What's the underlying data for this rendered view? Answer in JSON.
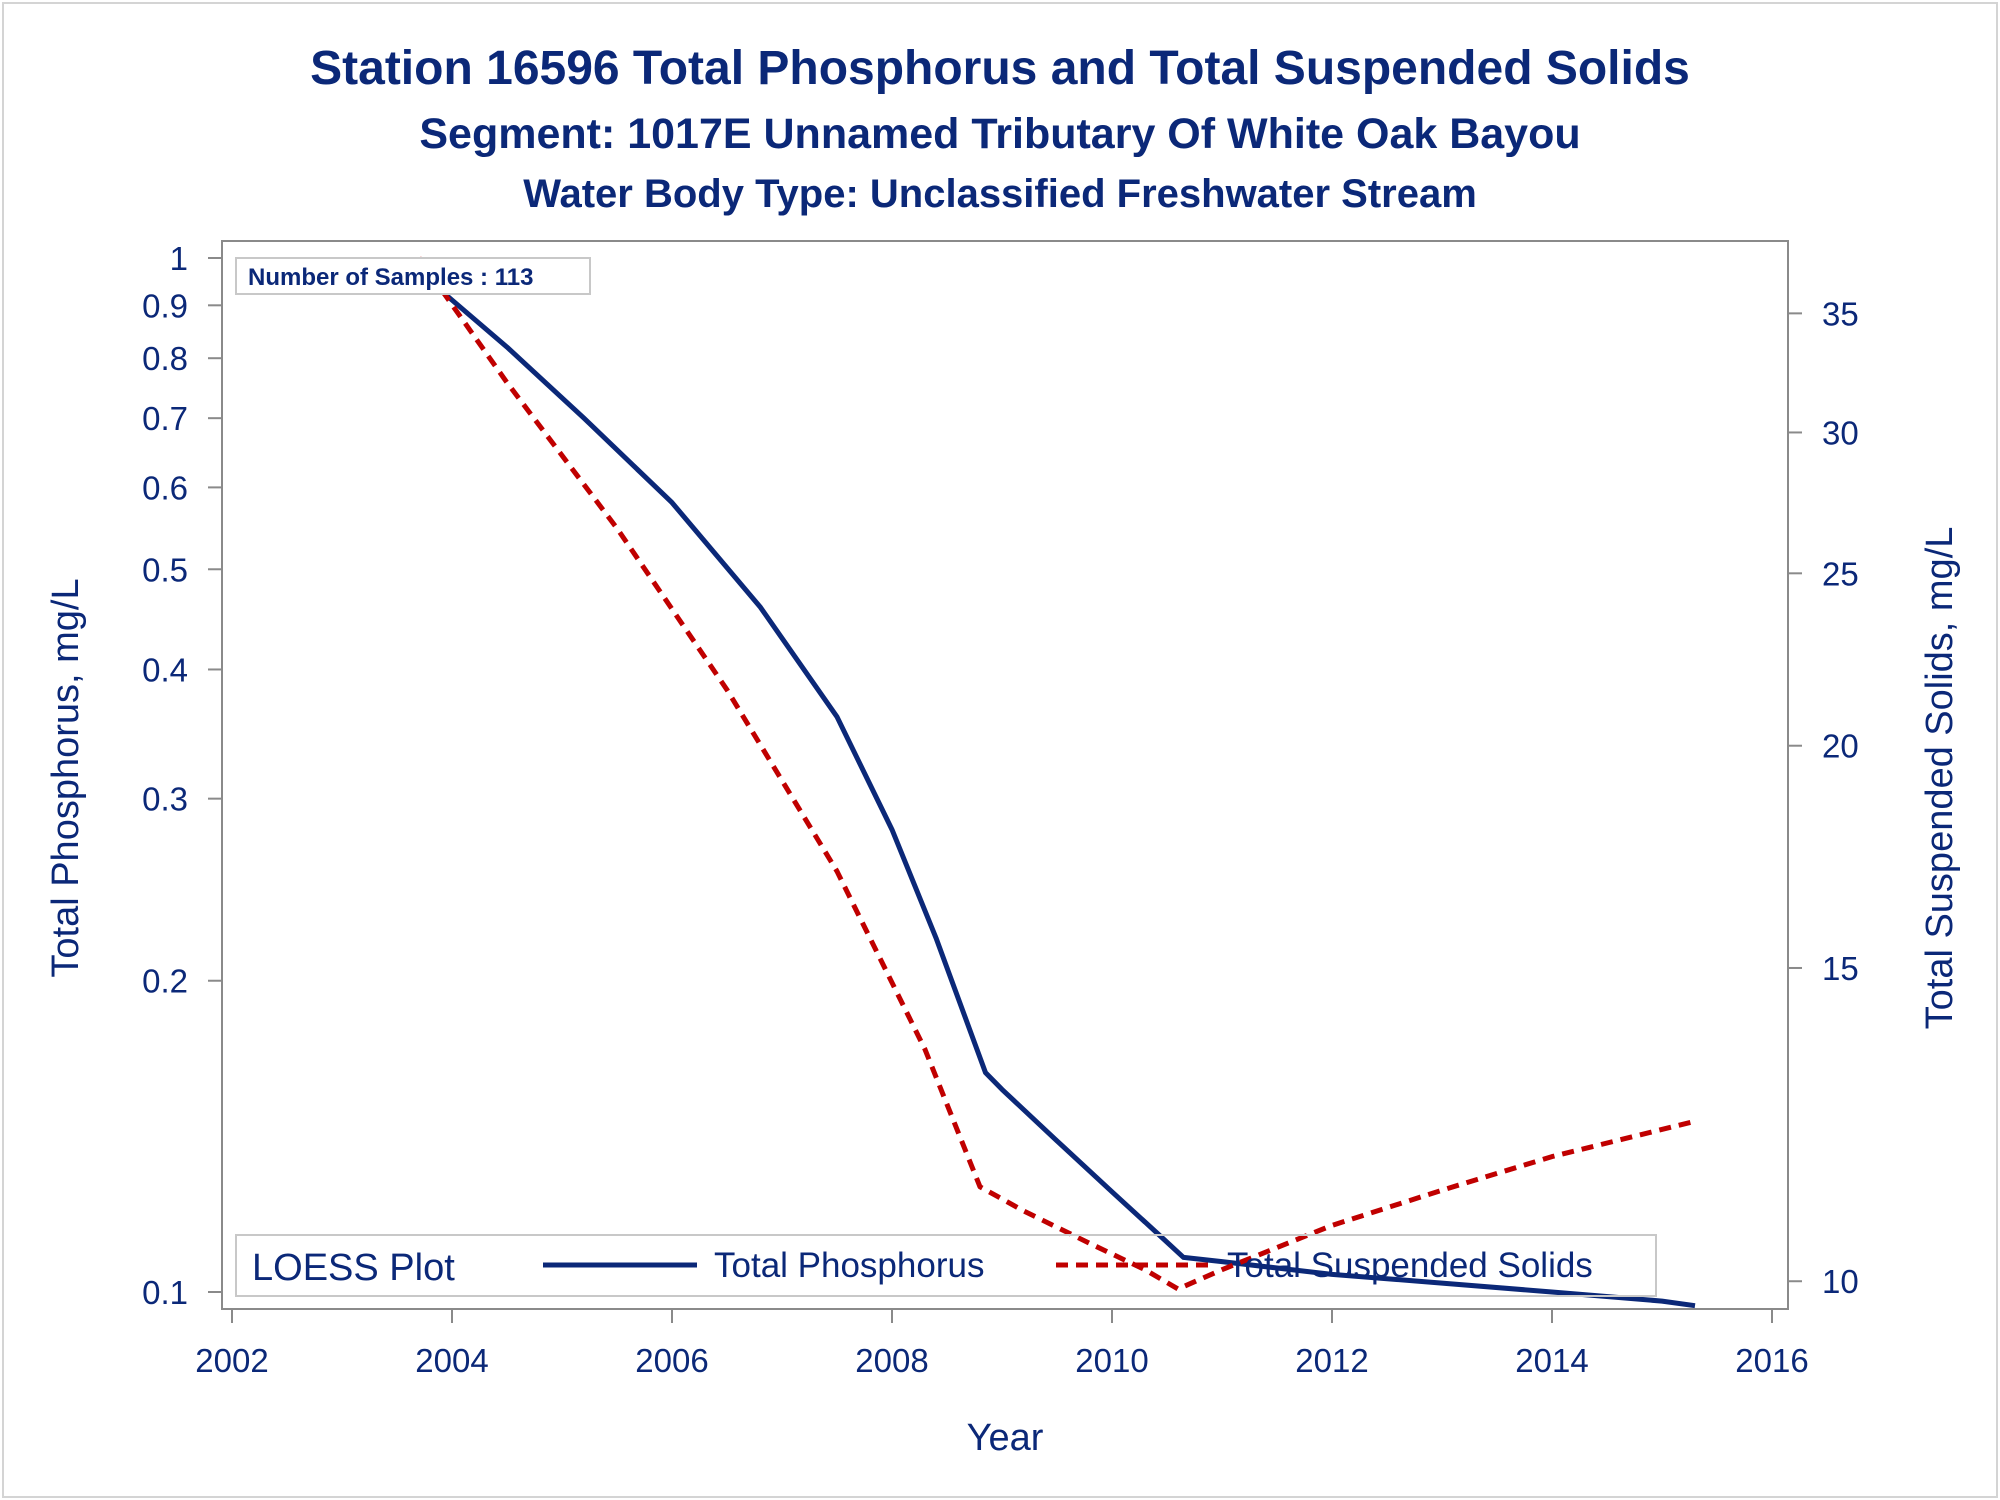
{
  "chart_data": {
    "type": "line",
    "title": "Station 16596  Total Phosphorus and Total Suspended Solids",
    "subtitle": "Segment: 1017E  Unnamed Tributary Of White Oak Bayou",
    "subtitle2": "Water Body Type: Unclassified Freshwater Stream",
    "xlabel": "Year",
    "ylabel": "Total Phosphorus, mg/L",
    "y2label": "Total Suspended Solids, mg/L",
    "xlim": [
      2002,
      2016
    ],
    "ylim": [
      0.1,
      1
    ],
    "yscale": "log",
    "y2lim": [
      9.9,
      37.6
    ],
    "y2scale": "log",
    "x_ticks": [
      "2002",
      "2004",
      "2006",
      "2008",
      "2010",
      "2012",
      "2014",
      "2016"
    ],
    "y_ticks": [
      "1",
      "0.9",
      "0.8",
      "0.7",
      "0.6",
      "0.5",
      "0.4",
      "0.3",
      "0.2",
      "0.1"
    ],
    "y2_ticks": [
      "35",
      "30",
      "25",
      "20",
      "15",
      "10"
    ],
    "inset_text": "Number of Samples : 113",
    "legend": {
      "title": "LOESS Plot",
      "position": "bottom"
    },
    "series": [
      {
        "name": "Total Phosphorus",
        "axis": "left",
        "color": "#0b2878",
        "style": "solid",
        "x": [
          2003.9,
          2004.5,
          2005.2,
          2006.0,
          2006.8,
          2007.5,
          2008.0,
          2008.4,
          2008.85,
          2009.0,
          2009.5,
          2010.0,
          2010.45,
          2010.65,
          2011.0,
          2012.0,
          2013.0,
          2014.0,
          2015.0,
          2015.3
        ],
        "y": [
          0.93,
          0.82,
          0.7,
          0.58,
          0.46,
          0.36,
          0.28,
          0.22,
          0.163,
          0.157,
          0.14,
          0.125,
          0.113,
          0.108,
          0.107,
          0.104,
          0.102,
          0.1,
          0.098,
          0.097
        ]
      },
      {
        "name": "Total Suspended Solids",
        "axis": "right",
        "color": "#c00000",
        "style": "dashed",
        "x": [
          2003.7,
          2004.5,
          2005.5,
          2006.5,
          2007.5,
          2008.3,
          2008.8,
          2009.2,
          2009.8,
          2010.3,
          2010.6,
          2011.0,
          2012.0,
          2013.0,
          2014.0,
          2015.3
        ],
        "y": [
          37.6,
          32.0,
          26.5,
          21.5,
          17.0,
          13.5,
          11.3,
          10.95,
          10.5,
          10.15,
          9.9,
          10.15,
          10.75,
          11.25,
          11.75,
          12.3
        ]
      }
    ]
  }
}
